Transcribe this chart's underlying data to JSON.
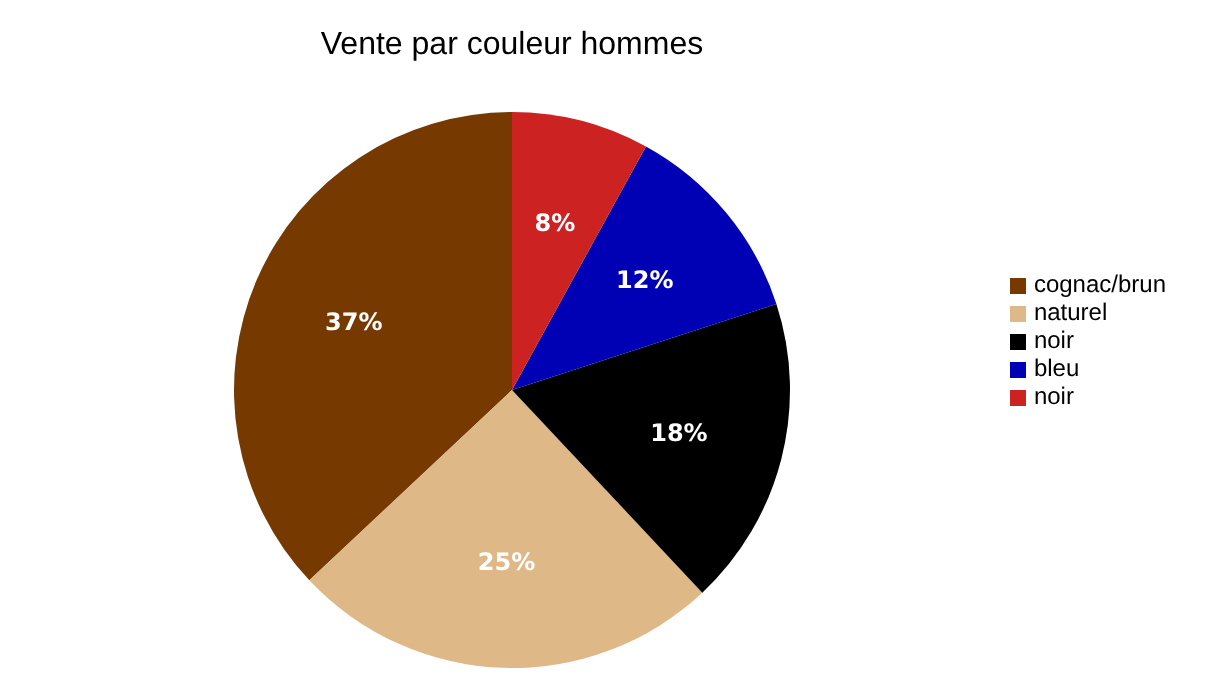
{
  "chart_data": {
    "type": "pie",
    "title": "Vente par couleur hommes",
    "categories": [
      "cognac/brun",
      "naturel",
      "noir",
      "bleu",
      "noir"
    ],
    "values": [
      37,
      25,
      18,
      12,
      8
    ],
    "colors": [
      "#763a00",
      "#deb887",
      "#000000",
      "#0000b4",
      "#cc2222"
    ],
    "value_labels": [
      "37%",
      "25%",
      "18%",
      "12%",
      "8%"
    ],
    "legend": "right"
  }
}
